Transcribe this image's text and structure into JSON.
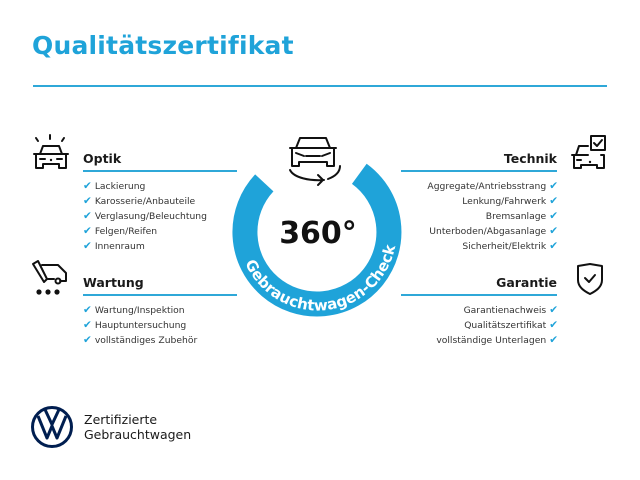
{
  "header": {
    "title": "Qualitätszertifikat"
  },
  "colors": {
    "accent": "#1fa3d9",
    "logo": "#001e50"
  },
  "center": {
    "big_label": "360°",
    "ring_label": "Gebrauchtwagen-Check",
    "icon": "car-rotate-icon"
  },
  "check_mark": "✔",
  "sections": {
    "optik": {
      "title": "Optik",
      "icon": "car-lights-icon",
      "items": [
        "Lackierung",
        "Karosserie/Anbauteile",
        "Verglasung/Beleuchtung",
        "Felgen/Reifen",
        "Innenraum"
      ]
    },
    "wartung": {
      "title": "Wartung",
      "icon": "service-truck-icon",
      "items": [
        "Wartung/Inspektion",
        "Hauptuntersuchung",
        "vollständiges Zubehör"
      ]
    },
    "technik": {
      "title": "Technik",
      "icon": "car-checkbox-icon",
      "items": [
        "Aggregate/Antriebsstrang",
        "Lenkung/Fahrwerk",
        "Bremsanlage",
        "Unterboden/Abgasanlage",
        "Sicherheit/Elektrik"
      ]
    },
    "garantie": {
      "title": "Garantie",
      "icon": "shield-check-icon",
      "items": [
        "Garantienachweis",
        "Qualitätszertifikat",
        "vollständige Unterlagen"
      ]
    }
  },
  "footer": {
    "line1": "Zertifizierte",
    "line2": "Gebrauchtwagen",
    "logo": "vw-logo"
  }
}
